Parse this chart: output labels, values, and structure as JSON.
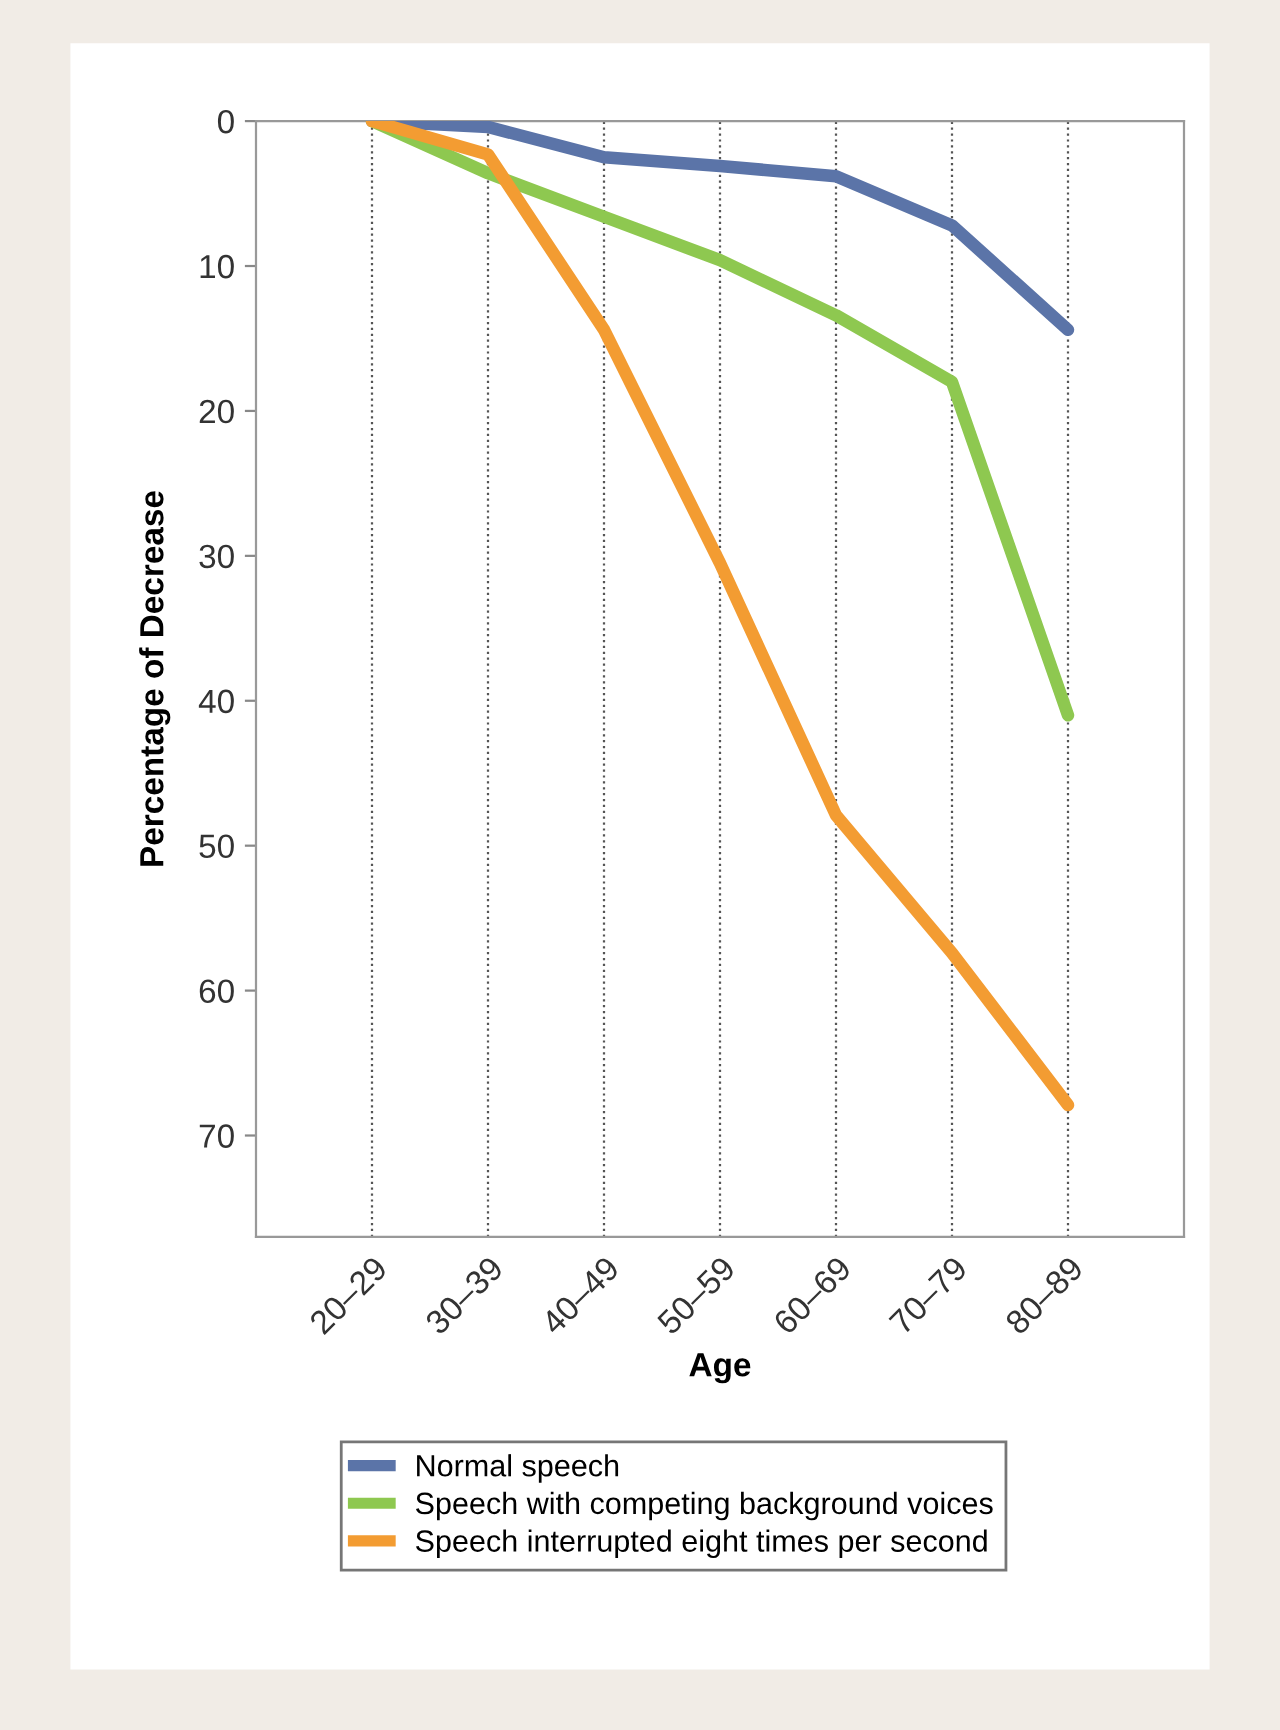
{
  "chart_data": {
    "type": "line",
    "xlabel": "Age",
    "ylabel": "Percentage of Decrease",
    "categories": [
      "20–29",
      "30–39",
      "40–49",
      "50–59",
      "60–69",
      "70–79",
      "80–89"
    ],
    "series": [
      {
        "name": "Normal speech",
        "color": "#5b74a8",
        "values": [
          0,
          0.4,
          2.5,
          3.1,
          3.8,
          7.2,
          14.4
        ]
      },
      {
        "name": "Speech with competing background voices",
        "color": "#8ec850",
        "values": [
          0,
          3.6,
          6.6,
          9.6,
          13.4,
          18,
          41
        ]
      },
      {
        "name": "Speech interrupted eight times per second",
        "color": "#f39c32",
        "values": [
          0,
          2.3,
          14.4,
          30.5,
          47.9,
          57.4,
          67.9
        ]
      }
    ],
    "ylim": [
      77,
      0
    ],
    "yticks": [
      0,
      10,
      20,
      30,
      40,
      50,
      60,
      70
    ],
    "grid": "x",
    "legend": "bottom",
    "marker": "none",
    "line_style": "solid"
  }
}
